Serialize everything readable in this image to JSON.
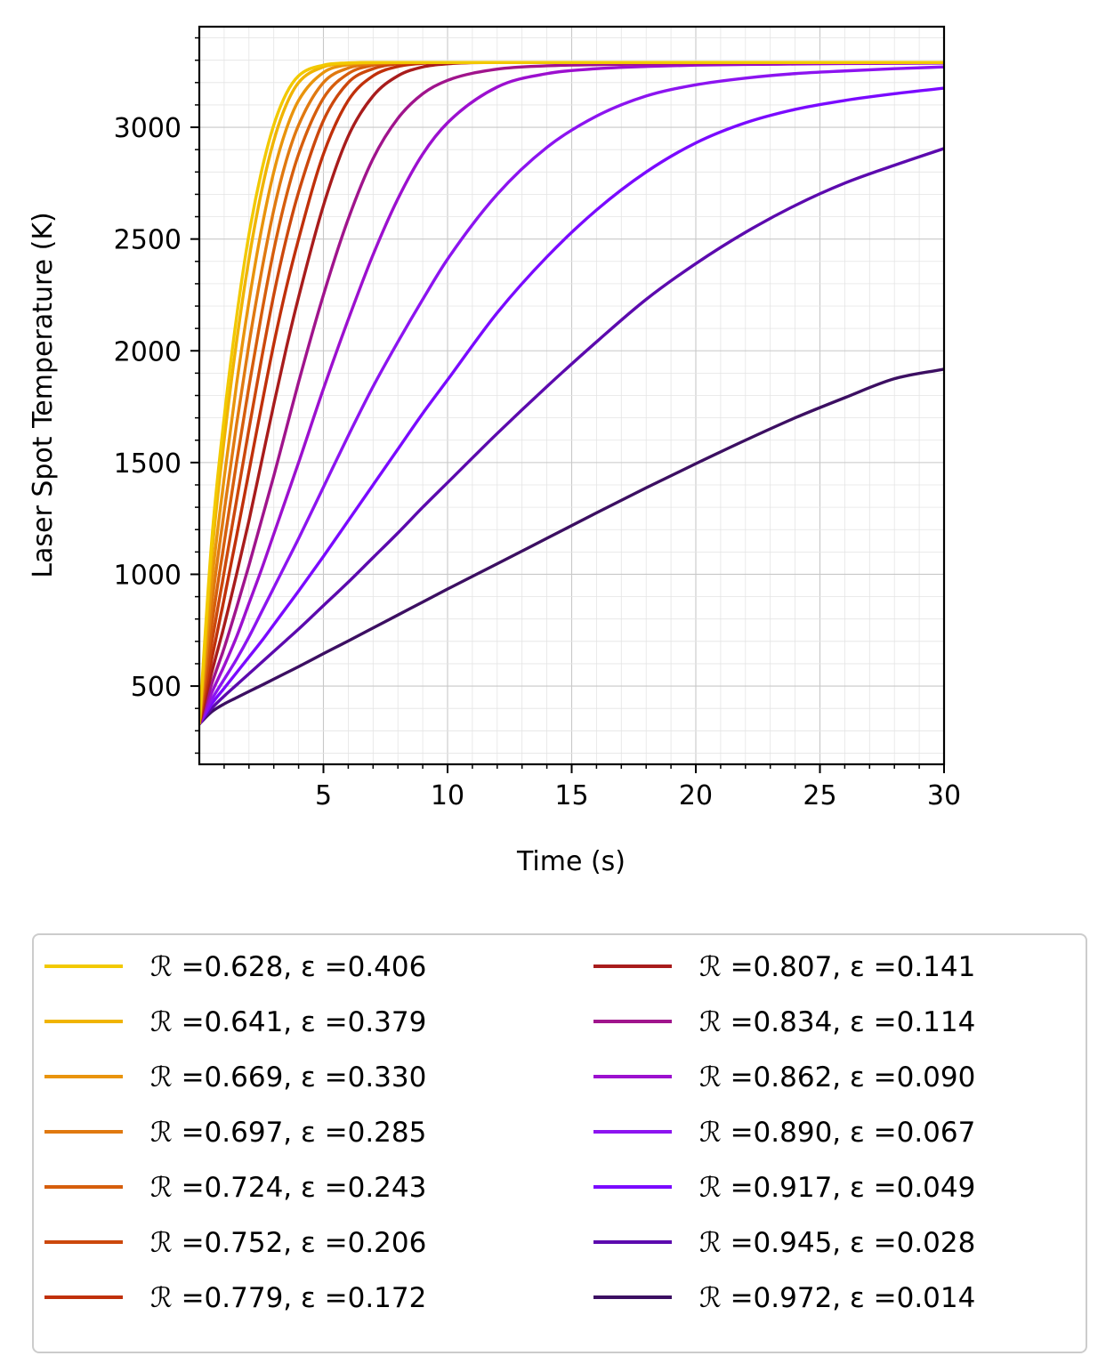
{
  "chart_data": {
    "type": "line",
    "title": "",
    "xlabel": "Time (s)",
    "ylabel": "Laser Spot Temperature (K)",
    "xlim": [
      0,
      30
    ],
    "ylim": [
      150,
      3450
    ],
    "xticks": [
      5,
      10,
      15,
      20,
      25,
      30
    ],
    "yticks": [
      500,
      1000,
      1500,
      2000,
      2500,
      3000
    ],
    "x_minor_step": 1,
    "y_minor_step": 100,
    "grid": "major and minor, light gray",
    "legend_position": "below plot, 2 columns",
    "x": [
      0,
      0.5,
      1,
      1.5,
      2,
      2.5,
      3,
      3.5,
      4,
      5,
      6,
      7,
      8,
      9,
      10,
      12,
      14,
      16,
      18,
      20,
      22,
      24,
      26,
      28,
      30
    ],
    "series": [
      {
        "name": "ℛ =0.628, ε =0.406",
        "color": "#f2c900",
        "values": [
          330,
          1150,
          1700,
          2150,
          2520,
          2800,
          3010,
          3150,
          3230,
          3278,
          3288,
          3290,
          3290,
          3290,
          3290,
          3290,
          3290,
          3290,
          3290,
          3290,
          3290,
          3290,
          3290,
          3290,
          3290
        ]
      },
      {
        "name": "ℛ =0.641, ε =0.379",
        "color": "#f0b400",
        "values": [
          330,
          1080,
          1600,
          2040,
          2410,
          2710,
          2940,
          3100,
          3200,
          3270,
          3286,
          3290,
          3290,
          3290,
          3290,
          3290,
          3290,
          3290,
          3290,
          3290,
          3290,
          3290,
          3290,
          3290,
          3290
        ]
      },
      {
        "name": "ℛ =0.669, ε =0.330",
        "color": "#e9940c",
        "values": [
          330,
          960,
          1430,
          1850,
          2220,
          2540,
          2800,
          2990,
          3120,
          3245,
          3280,
          3288,
          3290,
          3290,
          3290,
          3290,
          3290,
          3290,
          3290,
          3290,
          3290,
          3290,
          3290,
          3290,
          3290
        ]
      },
      {
        "name": "ℛ =0.697, ε =0.285",
        "color": "#e07910",
        "values": [
          330,
          860,
          1280,
          1670,
          2030,
          2350,
          2630,
          2850,
          3010,
          3200,
          3265,
          3284,
          3289,
          3290,
          3290,
          3290,
          3290,
          3290,
          3290,
          3290,
          3290,
          3290,
          3290,
          3290,
          3290
        ]
      },
      {
        "name": "ℛ =0.724, ε =0.243",
        "color": "#d65e0c",
        "values": [
          330,
          770,
          1140,
          1500,
          1840,
          2160,
          2450,
          2690,
          2880,
          3130,
          3240,
          3278,
          3288,
          3290,
          3290,
          3290,
          3290,
          3290,
          3290,
          3290,
          3290,
          3290,
          3290,
          3290,
          3290
        ]
      },
      {
        "name": "ℛ =0.752, ε =0.206",
        "color": "#cc480c",
        "values": [
          330,
          690,
          1010,
          1330,
          1650,
          1960,
          2250,
          2500,
          2710,
          3030,
          3200,
          3262,
          3284,
          3289,
          3290,
          3290,
          3290,
          3290,
          3290,
          3290,
          3290,
          3290,
          3290,
          3290,
          3290
        ]
      },
      {
        "name": "ℛ =0.779, ε =0.172",
        "color": "#c0300a",
        "values": [
          330,
          620,
          890,
          1170,
          1460,
          1750,
          2030,
          2280,
          2500,
          2880,
          3120,
          3230,
          3272,
          3286,
          3290,
          3290,
          3290,
          3290,
          3290,
          3290,
          3290,
          3290,
          3290,
          3290,
          3290
        ]
      },
      {
        "name": "ℛ =0.807, ε =0.141",
        "color": "#a81c1c",
        "values": [
          330,
          560,
          770,
          1000,
          1240,
          1500,
          1760,
          2010,
          2240,
          2650,
          2960,
          3140,
          3230,
          3270,
          3284,
          3290,
          3290,
          3290,
          3290,
          3290,
          3290,
          3290,
          3290,
          3290,
          3290
        ]
      },
      {
        "name": "ℛ =0.834, ε =0.114",
        "color": "#a0148c",
        "values": [
          330,
          510,
          670,
          850,
          1040,
          1240,
          1440,
          1650,
          1860,
          2250,
          2590,
          2860,
          3040,
          3150,
          3210,
          3260,
          3275,
          3280,
          3283,
          3285,
          3287,
          3288,
          3289,
          3289,
          3290
        ]
      },
      {
        "name": "ℛ =0.862, ε =0.090",
        "color": "#9c10cf",
        "values": [
          330,
          470,
          590,
          720,
          870,
          1020,
          1180,
          1340,
          1500,
          1830,
          2140,
          2430,
          2680,
          2880,
          3020,
          3180,
          3240,
          3262,
          3272,
          3278,
          3281,
          3283,
          3285,
          3286,
          3287
        ]
      },
      {
        "name": "ℛ =0.890, ε =0.067",
        "color": "#8c14f0",
        "values": [
          330,
          440,
          530,
          620,
          720,
          830,
          940,
          1050,
          1160,
          1390,
          1620,
          1840,
          2040,
          2230,
          2410,
          2700,
          2910,
          3050,
          3140,
          3190,
          3220,
          3240,
          3252,
          3262,
          3270
        ]
      },
      {
        "name": "ℛ =0.917, ε =0.049",
        "color": "#7a0aff",
        "values": [
          330,
          420,
          490,
          560,
          630,
          700,
          775,
          850,
          925,
          1080,
          1240,
          1400,
          1560,
          1720,
          1870,
          2170,
          2420,
          2630,
          2800,
          2930,
          3020,
          3080,
          3120,
          3150,
          3175
        ]
      },
      {
        "name": "ℛ =0.945, ε =0.028",
        "color": "#5c0aae",
        "values": [
          330,
          400,
          455,
          505,
          555,
          605,
          655,
          705,
          755,
          860,
          965,
          1075,
          1185,
          1300,
          1410,
          1630,
          1840,
          2040,
          2230,
          2390,
          2530,
          2650,
          2750,
          2830,
          2905
        ]
      },
      {
        "name": "ℛ =0.972, ε =0.014",
        "color": "#3c0f62",
        "values": [
          330,
          385,
          420,
          448,
          476,
          503,
          531,
          559,
          587,
          645,
          702,
          760,
          818,
          876,
          934,
          1047,
          1161,
          1275,
          1387,
          1495,
          1600,
          1700,
          1790,
          1875,
          1918
        ]
      }
    ]
  }
}
